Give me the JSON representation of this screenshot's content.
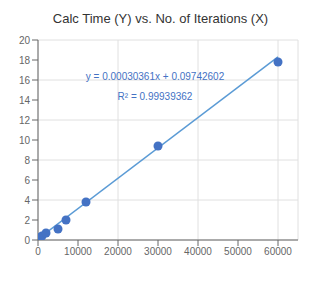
{
  "chart_data": {
    "type": "scatter",
    "title": "Calc Time (Y) vs. No. of Iterations (X)",
    "series": [
      {
        "type": "line",
        "color": "#5B9BD5",
        "x": [
          0,
          60000
        ],
        "values": [
          0.09742602,
          18.31402602
        ]
      },
      {
        "type": "scatter",
        "color": "#4472C4",
        "x": [
          500,
          1000,
          2000,
          5000,
          7000,
          12000,
          30000,
          60000
        ],
        "values": [
          0.25,
          0.4,
          0.7,
          1.1,
          2.0,
          3.8,
          9.4,
          17.8
        ]
      }
    ],
    "annotations": [
      "y = 0.00030361x + 0.09742602",
      "R² = 0.99939362"
    ],
    "xlim": [
      0,
      65000
    ],
    "ylim": [
      0,
      20
    ],
    "xticks": [
      0,
      10000,
      20000,
      30000,
      40000,
      50000,
      60000
    ],
    "yticks": [
      0,
      2,
      4,
      6,
      8,
      10,
      12,
      14,
      16,
      18,
      20
    ],
    "grid": true
  }
}
